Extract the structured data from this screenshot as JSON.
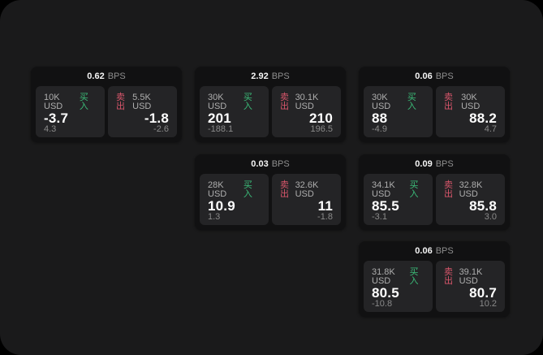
{
  "theme": {
    "page_background": "#000000",
    "surface_background": "#1A1A1B",
    "card_background": "#111112",
    "panel_background": "#242426",
    "buy_color": "#3BBD79",
    "sell_color": "#D8566B",
    "primary_text": "#F5F5F5",
    "muted_text": "#AEAEAE",
    "faint_text": "#8A8A8A"
  },
  "labels": {
    "bps_unit": "BPS",
    "buy": "买入",
    "sell": "卖出"
  },
  "cards": [
    {
      "bps": "0.62",
      "buy": {
        "amount": "10K USD",
        "price": "-3.7",
        "delta": "4.3"
      },
      "sell": {
        "amount": "5.5K USD",
        "price": "-1.8",
        "delta": "-2.6"
      }
    },
    {
      "bps": "2.92",
      "buy": {
        "amount": "30K USD",
        "price": "201",
        "delta": "-188.1"
      },
      "sell": {
        "amount": "30.1K USD",
        "price": "210",
        "delta": "196.5"
      }
    },
    {
      "bps": "0.06",
      "buy": {
        "amount": "30K USD",
        "price": "88",
        "delta": "-4.9"
      },
      "sell": {
        "amount": "30K USD",
        "price": "88.2",
        "delta": "4.7"
      }
    },
    {
      "bps": "0.03",
      "buy": {
        "amount": "28K USD",
        "price": "10.9",
        "delta": "1.3"
      },
      "sell": {
        "amount": "32.6K USD",
        "price": "11",
        "delta": "-1.8"
      }
    },
    {
      "bps": "0.09",
      "buy": {
        "amount": "34.1K USD",
        "price": "85.5",
        "delta": "-3.1"
      },
      "sell": {
        "amount": "32.8K USD",
        "price": "85.8",
        "delta": "3.0"
      }
    },
    {
      "bps": "0.06",
      "buy": {
        "amount": "31.8K USD",
        "price": "80.5",
        "delta": "-10.8"
      },
      "sell": {
        "amount": "39.1K USD",
        "price": "80.7",
        "delta": "10.2"
      }
    }
  ]
}
